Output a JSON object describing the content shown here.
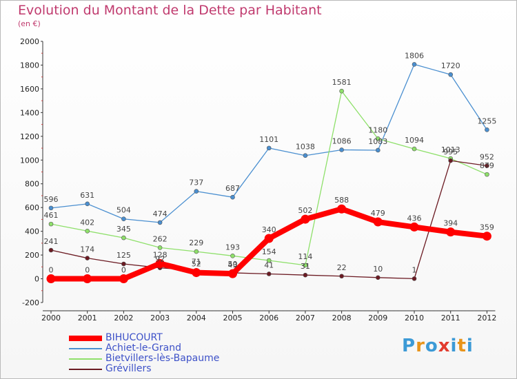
{
  "chart_data": {
    "type": "line",
    "title": "Evolution du Montant de la Dette par Habitant",
    "subtitle": "(en €)",
    "x": [
      "2000",
      "2001",
      "2002",
      "2003",
      "2004",
      "2005",
      "2006",
      "2007",
      "2008",
      "2009",
      "2010",
      "2011",
      "2012"
    ],
    "ylim": [
      -200,
      2000
    ],
    "yticks": [
      -200,
      0,
      200,
      400,
      600,
      800,
      1000,
      1200,
      1400,
      1600,
      1800,
      2000
    ],
    "grid": false,
    "legend_position": "bottom-left",
    "series": [
      {
        "name": "BIHUCOURT",
        "color": "#ff0000",
        "values": [
          0,
          0,
          0,
          128,
          52,
          43,
          340,
          502,
          588,
          479,
          436,
          394,
          359
        ]
      },
      {
        "name": "Achiet-le-Grand",
        "color": "#4a8fd0",
        "values": [
          596,
          631,
          504,
          474,
          737,
          687,
          1101,
          1038,
          1086,
          1083,
          1806,
          1720,
          1255
        ]
      },
      {
        "name": "Bietvillers-lès-Bapaume",
        "color": "#8ee06a",
        "values": [
          461,
          402,
          345,
          262,
          229,
          193,
          154,
          114,
          1581,
          1180,
          1094,
          1013,
          879
        ]
      },
      {
        "name": "Grévillers",
        "color": "#6b1a22",
        "values": [
          241,
          174,
          125,
          92,
          71,
          50,
          41,
          31,
          22,
          10,
          1,
          995,
          952
        ]
      }
    ]
  },
  "logo": {
    "text": "Proxiti",
    "letter_colors": [
      "#3c9ad6",
      "#e8941a",
      "#3c9ad6",
      "#e23b2e",
      "#3c9ad6",
      "#e8941a",
      "#3c9ad6"
    ]
  }
}
